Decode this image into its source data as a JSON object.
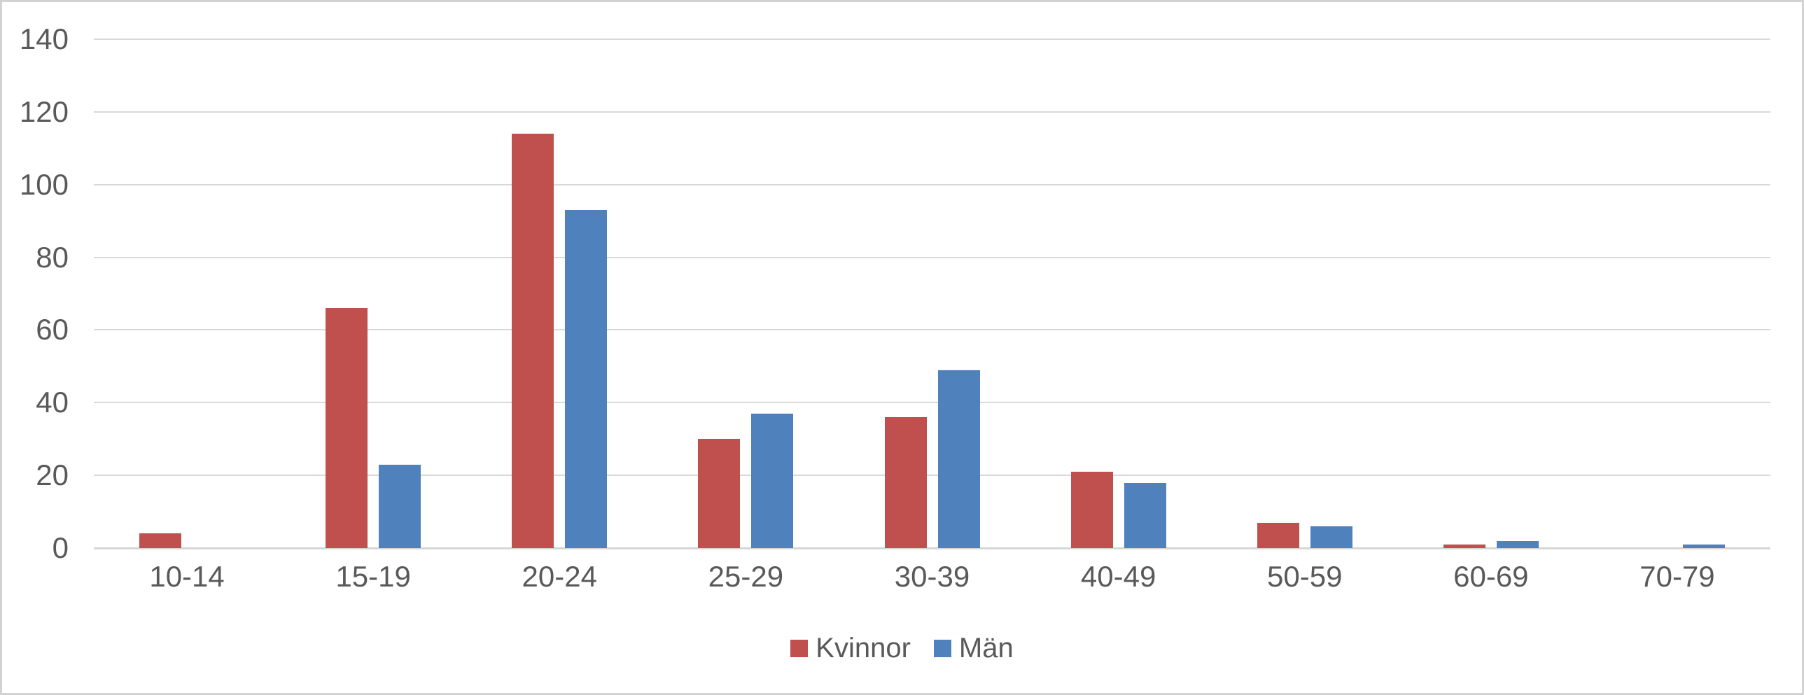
{
  "chart_data": {
    "type": "bar",
    "title": "",
    "xlabel": "",
    "ylabel": "",
    "categories": [
      "10-14",
      "15-19",
      "20-24",
      "25-29",
      "30-39",
      "40-49",
      "50-59",
      "60-69",
      "70-79"
    ],
    "series": [
      {
        "name": "Kvinnor",
        "color": "#C0504D",
        "values": [
          4,
          66,
          114,
          30,
          36,
          21,
          7,
          1,
          0
        ]
      },
      {
        "name": "Män",
        "color": "#4F81BD",
        "values": [
          0,
          23,
          93,
          37,
          49,
          18,
          6,
          2,
          1
        ]
      }
    ],
    "ylim": [
      0,
      140
    ],
    "ytick_step": 20,
    "ytick_labels": [
      "0",
      "20",
      "40",
      "60",
      "80",
      "100",
      "120",
      "140"
    ],
    "grid": true,
    "legend_position": "bottom-center"
  },
  "colors": {
    "axis_text": "#595959",
    "gridline": "#d9d9d9",
    "frame_border": "#d2d2d2",
    "background": "#ffffff"
  }
}
